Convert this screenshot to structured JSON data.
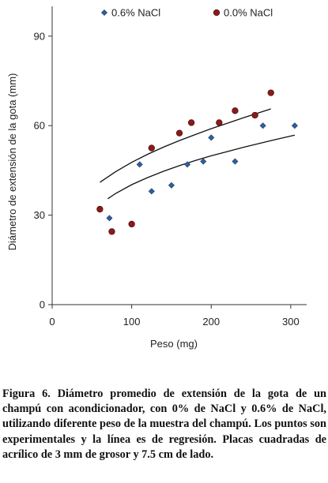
{
  "chart_data": {
    "type": "scatter",
    "xlabel": "Peso (mg)",
    "ylabel": "Diámetro de extensión de la gota (mm)",
    "xlim": [
      0,
      320
    ],
    "ylim": [
      0,
      100
    ],
    "xticks": [
      0,
      100,
      200,
      300
    ],
    "yticks": [
      0,
      30,
      60,
      90
    ],
    "grid": false,
    "legend_position": "top",
    "series": [
      {
        "name": "0.6% NaCl",
        "marker": "diamond",
        "color": "#2f5f9e",
        "points": [
          [
            72,
            29
          ],
          [
            110,
            47
          ],
          [
            125,
            38
          ],
          [
            150,
            40
          ],
          [
            170,
            47
          ],
          [
            190,
            48
          ],
          [
            200,
            56
          ],
          [
            230,
            48
          ],
          [
            265,
            60
          ],
          [
            305,
            60
          ]
        ],
        "regression": {
          "x": [
            70,
            80,
            100,
            120,
            140,
            160,
            180,
            200,
            220,
            240,
            260,
            280,
            300,
            305
          ],
          "y": [
            35.5,
            37.3,
            40.2,
            42.6,
            44.7,
            46.6,
            48.3,
            49.9,
            51.3,
            52.7,
            54.0,
            55.3,
            56.5,
            56.8
          ]
        }
      },
      {
        "name": "0.0% NaCl",
        "marker": "circle",
        "color": "#8b1a1a",
        "points": [
          [
            60,
            32
          ],
          [
            75,
            24.5
          ],
          [
            100,
            27
          ],
          [
            125,
            52.5
          ],
          [
            160,
            57.5
          ],
          [
            175,
            61
          ],
          [
            210,
            61
          ],
          [
            230,
            65
          ],
          [
            255,
            63.5
          ],
          [
            275,
            71
          ]
        ],
        "regression": {
          "x": [
            60,
            80,
            100,
            120,
            140,
            160,
            180,
            200,
            220,
            240,
            260,
            275
          ],
          "y": [
            41.0,
            44.6,
            47.7,
            50.4,
            52.8,
            55.0,
            57.0,
            59.0,
            60.8,
            62.6,
            64.3,
            65.6
          ]
        }
      }
    ]
  },
  "caption": {
    "text": "Figura 6. Diámetro promedio de extensión de la gota de un champú con acondicionador, con 0% de NaCl y 0.6% de NaCl, utilizando diferente peso de la muestra del champú. Los puntos son experimentales y la línea es de regresión. Placas cuadradas de acrílico de 3 mm de grosor y 7.5 cm de lado."
  }
}
